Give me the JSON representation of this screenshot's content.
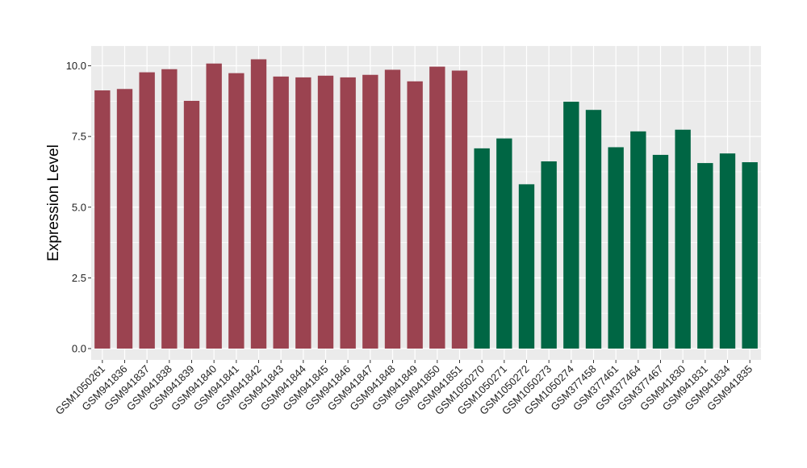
{
  "chart_data": {
    "type": "bar",
    "ylabel": "Expression Level",
    "xlabel": "",
    "ylim": [
      -0.4,
      10.7
    ],
    "yticks": [
      0.0,
      2.5,
      5.0,
      7.5,
      10.0
    ],
    "ytick_labels": [
      "0.0",
      "2.5",
      "5.0",
      "7.5",
      "10.0"
    ],
    "grid": true,
    "legend": "none",
    "categories": [
      "GSM1050261",
      "GSM941836",
      "GSM941837",
      "GSM941838",
      "GSM941839",
      "GSM941840",
      "GSM941841",
      "GSM941842",
      "GSM941843",
      "GSM941844",
      "GSM941845",
      "GSM941846",
      "GSM941847",
      "GSM941848",
      "GSM941849",
      "GSM941850",
      "GSM941851",
      "GSM1050270",
      "GSM1050271",
      "GSM1050272",
      "GSM1050273",
      "GSM1050274",
      "GSM377458",
      "GSM377461",
      "GSM377464",
      "GSM377467",
      "GSM941830",
      "GSM941831",
      "GSM941834",
      "GSM941835"
    ],
    "values": [
      9.13,
      9.18,
      9.77,
      9.88,
      8.76,
      10.08,
      9.74,
      10.23,
      9.62,
      9.59,
      9.65,
      9.59,
      9.68,
      9.86,
      9.45,
      9.97,
      9.83,
      7.08,
      7.43,
      5.81,
      6.62,
      8.73,
      8.44,
      7.12,
      7.68,
      6.85,
      7.74,
      6.56,
      6.9,
      6.59
    ],
    "bar_colors": [
      "#9b4350",
      "#9b4350",
      "#9b4350",
      "#9b4350",
      "#9b4350",
      "#9b4350",
      "#9b4350",
      "#9b4350",
      "#9b4350",
      "#9b4350",
      "#9b4350",
      "#9b4350",
      "#9b4350",
      "#9b4350",
      "#9b4350",
      "#9b4350",
      "#9b4350",
      "#006644",
      "#006644",
      "#006644",
      "#006644",
      "#006644",
      "#006644",
      "#006644",
      "#006644",
      "#006644",
      "#006644",
      "#006644",
      "#006644",
      "#006644"
    ],
    "colors": {
      "panel_background": "#ebebeb",
      "grid": "#ffffff"
    }
  }
}
